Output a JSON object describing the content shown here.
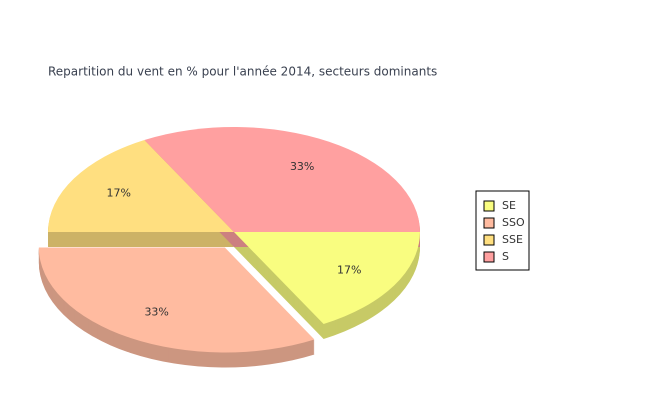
{
  "chart_data": {
    "type": "pie",
    "title": "Repartition du vent en % pour l'année 2014, secteurs dominants",
    "categories": [
      "SE",
      "SSO",
      "SSE",
      "S"
    ],
    "values": [
      17,
      33,
      17,
      33
    ],
    "value_labels": [
      "17%",
      "33%",
      "17%",
      "33%"
    ],
    "colors": [
      "#f9fd80",
      "#ffbba0",
      "#ffdf80",
      "#ffa0a0"
    ],
    "exploded": "SSO",
    "legend": "right"
  }
}
